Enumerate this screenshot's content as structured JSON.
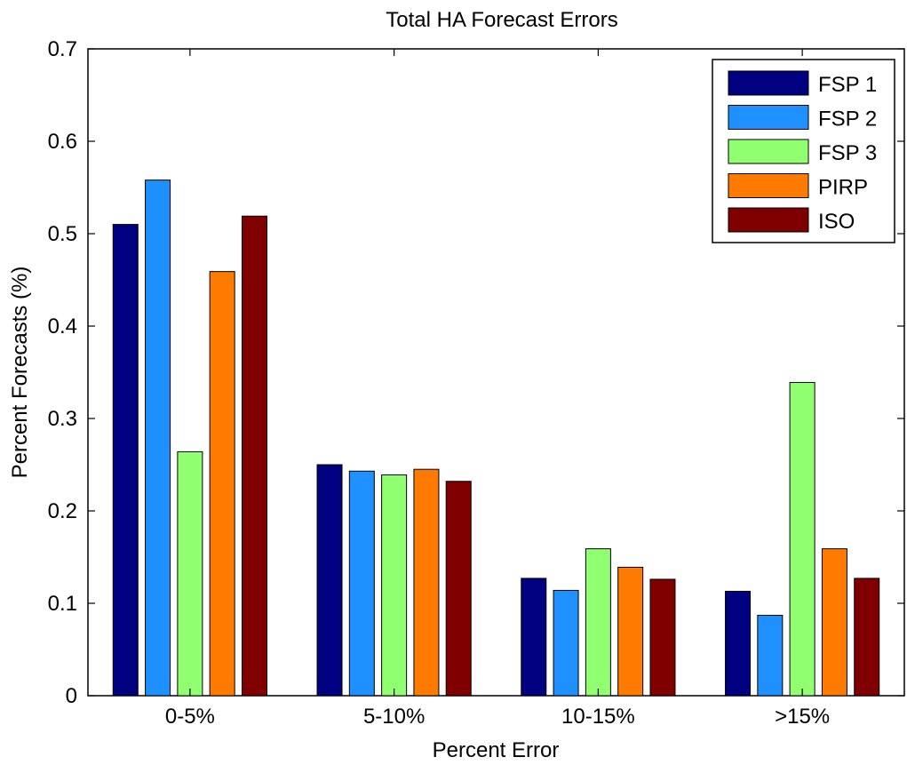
{
  "chart_data": {
    "type": "bar",
    "title": "Total HA Forecast Errors",
    "xlabel": "Percent Error",
    "ylabel": "Percent Forecasts (%)",
    "categories": [
      "0-5%",
      "5-10%",
      "10-15%",
      ">15%"
    ],
    "ylim": [
      0,
      0.7
    ],
    "yticks": [
      "0",
      "0.1",
      "0.2",
      "0.3",
      "0.4",
      "0.5",
      "0.6",
      "0.7"
    ],
    "grid": false,
    "legend_position": "top-right",
    "series": [
      {
        "name": "FSP 1",
        "color": "#000080",
        "values": [
          0.51,
          0.25,
          0.127,
          0.113
        ]
      },
      {
        "name": "FSP 2",
        "color": "#1E90FF",
        "values": [
          0.558,
          0.243,
          0.114,
          0.087
        ]
      },
      {
        "name": "FSP 3",
        "color": "#90FF70",
        "values": [
          0.264,
          0.239,
          0.159,
          0.339
        ]
      },
      {
        "name": "PIRP",
        "color": "#FF7A00",
        "values": [
          0.459,
          0.245,
          0.139,
          0.159
        ]
      },
      {
        "name": "ISO",
        "color": "#800000",
        "values": [
          0.519,
          0.232,
          0.126,
          0.127
        ]
      }
    ]
  }
}
